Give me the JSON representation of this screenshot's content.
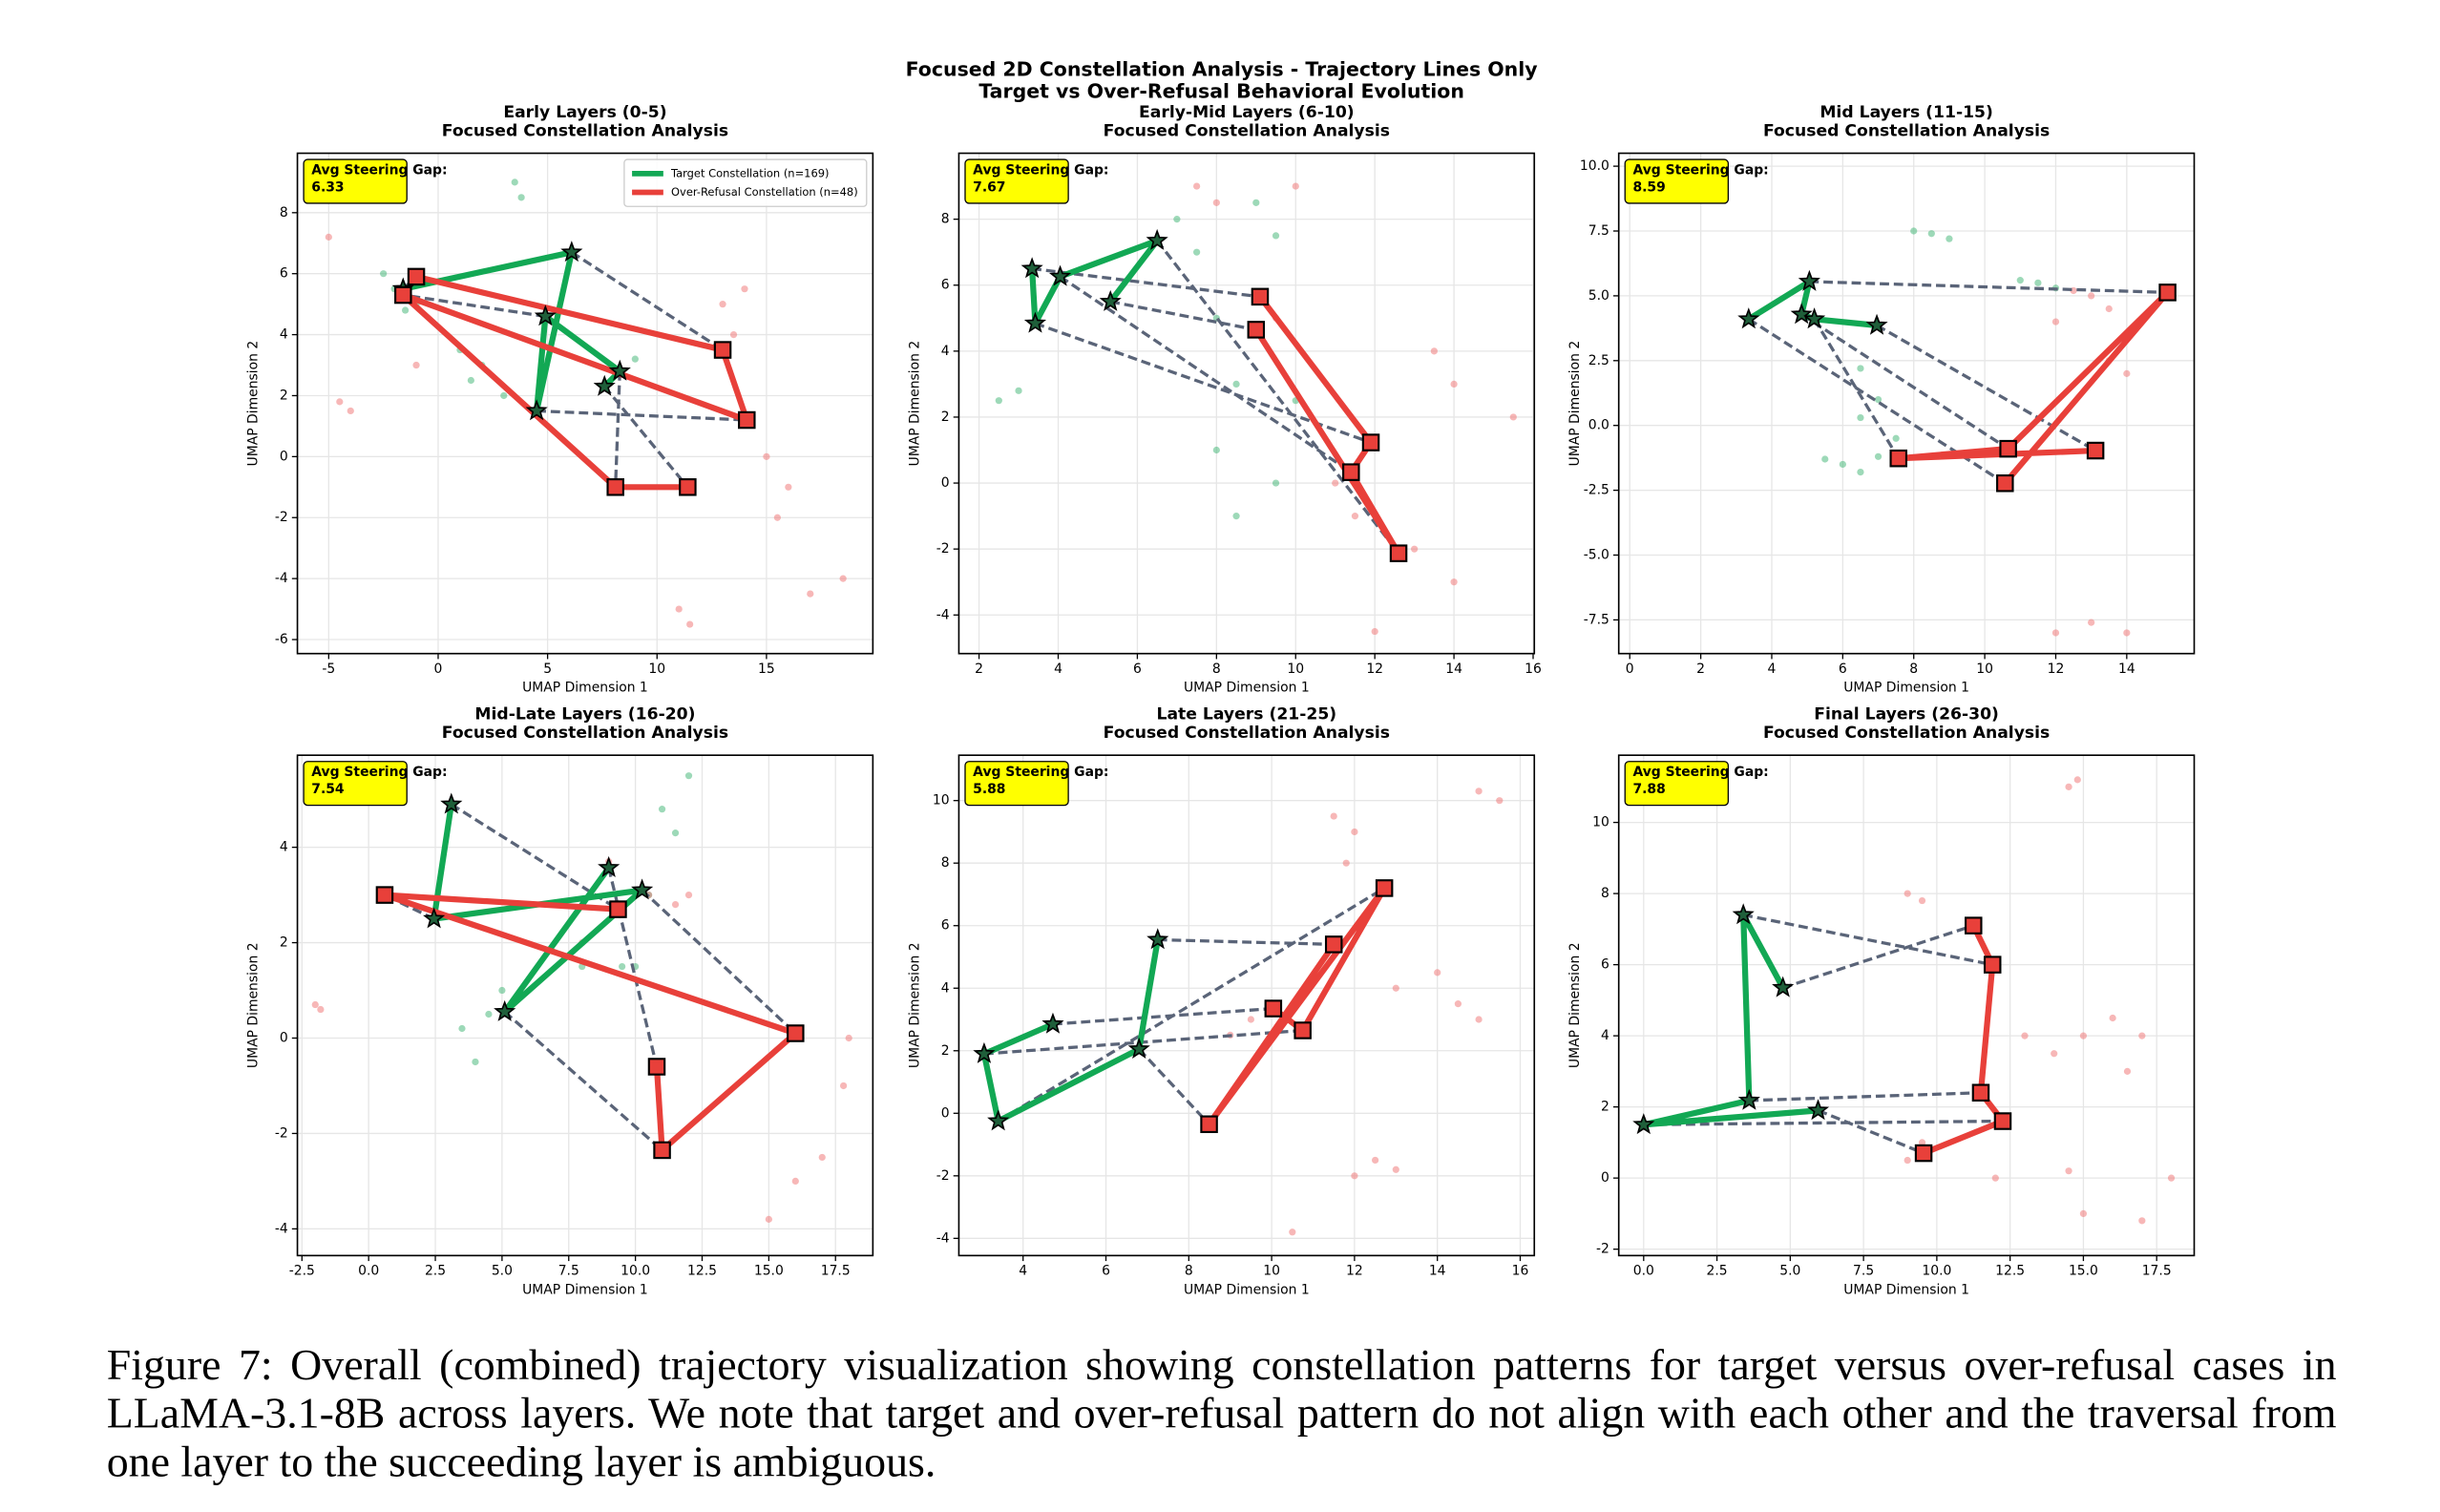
{
  "suptitle": [
    "Focused 2D Constellation Analysis - Trajectory Lines Only",
    "Target vs Over-Refusal Behavioral Evolution"
  ],
  "caption": "Figure 7: Overall (combined) trajectory visualization showing constellation patterns for target versus over-refusal cases in LLaMA-3.1-8B across layers. We note that target and over-refusal pattern do not align with each other and the traversal from one layer to the succeeding layer is ambiguous.",
  "chart_data": [
    {
      "type": "scatter",
      "title": "Early Layers (0-5)",
      "subtitle": "Focused Constellation Analysis",
      "xlabel": "UMAP Dimension 1",
      "ylabel": "UMAP Dimension 2",
      "annotation_label": "Avg Steering Gap:",
      "steering_gap": 6.33,
      "legend": "upper right",
      "grid": true,
      "xlim": [
        -6.43,
        19.86
      ],
      "xticks": [
        -5,
        0,
        5,
        10,
        15
      ],
      "ylim": [
        -6.46,
        9.95
      ],
      "yticks": [
        -6,
        -4,
        -2,
        0,
        2,
        4,
        6,
        8
      ],
      "series": [
        {
          "name": "Target Constellation (n=169)",
          "style": "trajectory",
          "marker": "star",
          "color": "#12a854",
          "x": [
            -1.6,
            6.1,
            4.5,
            4.9,
            8.3,
            7.6
          ],
          "values": [
            5.5,
            6.7,
            1.5,
            4.6,
            2.8,
            2.3
          ]
        },
        {
          "name": "Over-Refusal Constellation (n=48)",
          "style": "trajectory",
          "marker": "square",
          "color": "#e8403a",
          "x": [
            -1.0,
            13.0,
            14.1,
            -1.6,
            8.1,
            11.4
          ],
          "values": [
            5.9,
            3.5,
            1.2,
            5.3,
            -1.0,
            -1.0
          ]
        },
        {
          "style": "cloud",
          "color": "#3cb371",
          "x": [
            -2,
            -2.5,
            -1.5,
            1,
            1.5,
            2,
            3,
            3.5,
            3.8,
            9,
            -1
          ],
          "values": [
            5.5,
            6,
            4.8,
            3.5,
            2.5,
            3,
            2,
            9,
            8.5,
            3.2,
            5
          ]
        },
        {
          "style": "cloud",
          "color": "#f07070",
          "x": [
            -5,
            -4.5,
            -4,
            -1,
            13,
            14,
            13.5,
            15,
            16,
            15.5,
            11,
            11.5,
            17,
            18.5
          ],
          "values": [
            7.2,
            1.8,
            1.5,
            3,
            5,
            5.5,
            4,
            0,
            -1,
            -2,
            -5,
            -5.5,
            -4.5,
            -4
          ]
        }
      ]
    },
    {
      "type": "scatter",
      "title": "Early-Mid Layers (6-10)",
      "subtitle": "Focused Constellation Analysis",
      "xlabel": "UMAP Dimension 1",
      "ylabel": "UMAP Dimension 2",
      "annotation_label": "Avg Steering Gap:",
      "steering_gap": 7.67,
      "grid": true,
      "xlim": [
        1.49,
        16.03
      ],
      "xticks": [
        2,
        4,
        6,
        8,
        10,
        12,
        14,
        16
      ],
      "ylim": [
        -5.17,
        10.0
      ],
      "yticks": [
        -4,
        -2,
        0,
        2,
        4,
        6,
        8
      ],
      "series": [
        {
          "style": "trajectory",
          "marker": "star",
          "color": "#12a854",
          "x": [
            3.34,
            3.42,
            4.05,
            6.5,
            5.32
          ],
          "values": [
            6.5,
            4.84,
            6.26,
            7.35,
            5.5
          ]
        },
        {
          "style": "trajectory",
          "marker": "square",
          "color": "#e8403a",
          "x": [
            9.1,
            11.9,
            11.4,
            12.6,
            9.0
          ],
          "values": [
            5.65,
            1.23,
            0.33,
            -2.13,
            4.65
          ]
        },
        {
          "style": "cloud",
          "color": "#3cb371",
          "x": [
            3,
            2.5,
            7,
            7.5,
            9,
            9.5,
            8,
            8.5,
            8,
            9.5,
            8.5,
            10
          ],
          "values": [
            2.8,
            2.5,
            8,
            7,
            8.5,
            7.5,
            5,
            3,
            1,
            0,
            -1,
            2.5
          ]
        },
        {
          "style": "cloud",
          "color": "#f07070",
          "x": [
            7.5,
            8,
            10,
            9.5,
            11,
            11.5,
            12,
            13.5,
            14,
            13,
            14,
            15.5
          ],
          "values": [
            9,
            8.5,
            9,
            5,
            0,
            -1,
            -4.5,
            4,
            3,
            -2,
            -3,
            2
          ]
        }
      ]
    },
    {
      "type": "scatter",
      "title": "Mid Layers (11-15)",
      "subtitle": "Focused Constellation Analysis",
      "xlabel": "UMAP Dimension 1",
      "ylabel": "UMAP Dimension 2",
      "annotation_label": "Avg Steering Gap:",
      "steering_gap": 8.59,
      "grid": true,
      "xlim": [
        -0.31,
        15.9
      ],
      "xticks": [
        0,
        2,
        4,
        6,
        8,
        10,
        12,
        14
      ],
      "ylim": [
        -8.8,
        10.5
      ],
      "yticks": [
        -7.5,
        {
          "value": -5,
          "label": "-5.0"
        },
        -2.5,
        {
          "value": 0,
          "label": "0.0"
        },
        2.5,
        {
          "value": 5,
          "label": "5.0"
        },
        7.5,
        {
          "value": 10,
          "label": "10.0"
        }
      ],
      "series": [
        {
          "style": "trajectory",
          "marker": "star",
          "color": "#12a854",
          "x": [
            3.35,
            5.06,
            4.84,
            5.2,
            6.96
          ],
          "values": [
            4.1,
            5.55,
            4.28,
            4.1,
            3.86
          ]
        },
        {
          "style": "trajectory",
          "marker": "square",
          "color": "#e8403a",
          "x": [
            10.57,
            15.15,
            10.66,
            7.57,
            13.12
          ],
          "values": [
            -2.23,
            5.13,
            -0.9,
            -1.27,
            -0.97
          ]
        },
        {
          "style": "cloud",
          "color": "#3cb371",
          "x": [
            5.5,
            6,
            6.5,
            7,
            7.5,
            6.5,
            7,
            8,
            8.5,
            9,
            11,
            11.5,
            12,
            6.5
          ],
          "values": [
            -1.3,
            -1.5,
            -1.8,
            -1.2,
            -0.5,
            0.3,
            1,
            7.5,
            7.4,
            7.2,
            5.6,
            5.5,
            5.3,
            2.2
          ]
        },
        {
          "style": "cloud",
          "color": "#f07070",
          "x": [
            12.5,
            13,
            13.5,
            13.5,
            14,
            12,
            13,
            14,
            12
          ],
          "values": [
            5.2,
            5,
            4.5,
            2.5,
            2,
            -8,
            -7.6,
            -8,
            4
          ]
        }
      ]
    },
    {
      "type": "scatter",
      "title": "Mid-Late Layers (16-20)",
      "subtitle": "Focused Constellation Analysis",
      "xlabel": "UMAP Dimension 1",
      "ylabel": "UMAP Dimension 2",
      "annotation_label": "Avg Steering Gap:",
      "steering_gap": 7.54,
      "grid": true,
      "xlim": [
        -2.67,
        18.9
      ],
      "xticks": [
        -2.5,
        {
          "value": 0,
          "label": "0.0"
        },
        2.5,
        {
          "value": 5,
          "label": "5.0"
        },
        7.5,
        {
          "value": 10,
          "label": "10.0"
        },
        12.5,
        {
          "value": 15,
          "label": "15.0"
        },
        17.5
      ],
      "ylim": [
        -4.56,
        5.93
      ],
      "yticks": [
        -4,
        -2,
        0,
        2,
        4
      ],
      "series": [
        {
          "style": "trajectory",
          "marker": "star",
          "color": "#12a854",
          "x": [
            3.1,
            2.45,
            10.25,
            5.1,
            9.0
          ],
          "values": [
            4.9,
            2.5,
            3.1,
            0.55,
            3.57
          ]
        },
        {
          "style": "trajectory",
          "marker": "square",
          "color": "#e8403a",
          "x": [
            9.35,
            0.6,
            16.0,
            11.0,
            10.8
          ],
          "values": [
            2.7,
            3.0,
            0.1,
            -2.35,
            -0.6
          ]
        },
        {
          "style": "cloud",
          "color": "#3cb371",
          "x": [
            12,
            11.5,
            11,
            10.5,
            9.5,
            4.5,
            4,
            3.5,
            5,
            8,
            10
          ],
          "values": [
            5.5,
            4.3,
            4.8,
            3,
            1.5,
            0.5,
            -0.5,
            0.2,
            1,
            1.5,
            1.5
          ]
        },
        {
          "style": "cloud",
          "color": "#f07070",
          "x": [
            -2,
            -1.8,
            8,
            9,
            10.5,
            12,
            11.5,
            15,
            16,
            17,
            18,
            17.8
          ],
          "values": [
            0.7,
            0.6,
            2,
            3.7,
            3,
            3,
            2.8,
            -3.8,
            -3,
            -2.5,
            0,
            -1
          ]
        }
      ]
    },
    {
      "type": "scatter",
      "title": "Late Layers (21-25)",
      "subtitle": "Focused Constellation Analysis",
      "xlabel": "UMAP Dimension 1",
      "ylabel": "UMAP Dimension 2",
      "annotation_label": "Avg Steering Gap:",
      "steering_gap": 5.88,
      "grid": true,
      "xlim": [
        2.45,
        16.34
      ],
      "xticks": [
        4,
        6,
        8,
        10,
        12,
        14,
        16
      ],
      "ylim": [
        -4.55,
        11.45
      ],
      "yticks": [
        -4,
        -2,
        0,
        2,
        4,
        6,
        8,
        10
      ],
      "series": [
        {
          "style": "trajectory",
          "marker": "star",
          "color": "#12a854",
          "x": [
            7.25,
            6.8,
            3.4,
            3.06,
            4.72
          ],
          "values": [
            5.55,
            2.05,
            -0.25,
            1.9,
            2.85
          ]
        },
        {
          "style": "trajectory",
          "marker": "square",
          "color": "#e8403a",
          "x": [
            11.5,
            8.49,
            12.72,
            10.75,
            10.04
          ],
          "values": [
            5.4,
            -0.35,
            7.2,
            2.65,
            3.35
          ]
        },
        {
          "style": "cloud",
          "color": "#f07070",
          "x": [
            11.5,
            12,
            11.8,
            15,
            15.5,
            14,
            13,
            14.5,
            15,
            12.5,
            12,
            13,
            10.5,
            9,
            9.5
          ],
          "values": [
            9.5,
            9,
            8,
            10.3,
            10,
            4.5,
            4,
            3.5,
            3,
            -1.5,
            -2,
            -1.8,
            -3.8,
            2.5,
            3
          ]
        }
      ]
    },
    {
      "type": "scatter",
      "title": "Final Layers (26-30)",
      "subtitle": "Focused Constellation Analysis",
      "xlabel": "UMAP Dimension 1",
      "ylabel": "UMAP Dimension 2",
      "annotation_label": "Avg Steering Gap:",
      "steering_gap": 7.88,
      "grid": true,
      "xlim": [
        -0.85,
        18.78
      ],
      "xticks": [
        {
          "value": 0,
          "label": "0.0"
        },
        2.5,
        {
          "value": 5,
          "label": "5.0"
        },
        7.5,
        {
          "value": 10,
          "label": "10.0"
        },
        12.5,
        {
          "value": 15,
          "label": "15.0"
        },
        17.5
      ],
      "ylim": [
        -2.18,
        11.89
      ],
      "yticks": [
        -2,
        0,
        2,
        4,
        6,
        8,
        10
      ],
      "series": [
        {
          "style": "trajectory",
          "marker": "star",
          "color": "#12a854",
          "x": [
            4.75,
            3.4,
            3.6,
            0.0,
            5.95
          ],
          "values": [
            5.35,
            7.4,
            2.18,
            1.5,
            1.9
          ]
        },
        {
          "style": "trajectory",
          "marker": "square",
          "color": "#e8403a",
          "x": [
            11.25,
            11.9,
            11.5,
            12.25,
            9.55
          ],
          "values": [
            7.1,
            6.0,
            2.4,
            1.6,
            0.7
          ]
        },
        {
          "style": "cloud",
          "color": "#f07070",
          "x": [
            14.5,
            14.8,
            9,
            9.5,
            13,
            14,
            15,
            16,
            17,
            16.5,
            12,
            14.5,
            15,
            17,
            18,
            9,
            9.5
          ],
          "values": [
            11,
            11.2,
            8,
            7.8,
            4,
            3.5,
            4,
            4.5,
            4,
            3,
            0,
            0.2,
            -1,
            -1.2,
            0,
            0.5,
            1
          ]
        }
      ]
    }
  ]
}
